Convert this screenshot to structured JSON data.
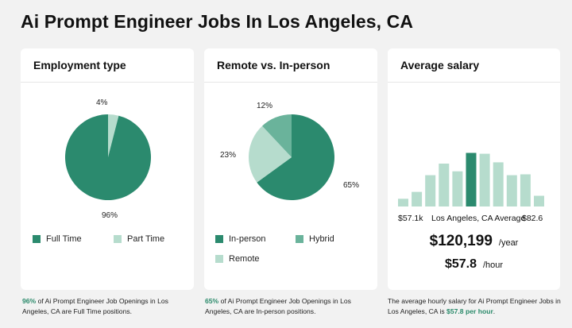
{
  "page": {
    "title": "Ai Prompt Engineer Jobs In Los Angeles, CA"
  },
  "colors": {
    "dark_green": "#2b8a6e",
    "mid_green": "#6ab39b",
    "light_green": "#b6dccd",
    "highlight_text": "#2a8a6a"
  },
  "employment": {
    "title": "Employment type",
    "slices": [
      {
        "name": "Full Time",
        "value": 96,
        "label": "96%"
      },
      {
        "name": "Part Time",
        "value": 4,
        "label": "4%"
      }
    ],
    "legend": [
      "Full Time",
      "Part Time"
    ],
    "footnote_pct": "96%",
    "footnote_text": " of Ai Prompt Engineer Job Openings in Los Angeles, CA are Full Time positions."
  },
  "remote": {
    "title": "Remote vs. In-person",
    "slices": [
      {
        "name": "In-person",
        "value": 65,
        "label": "65%"
      },
      {
        "name": "Remote",
        "value": 23,
        "label": "23%"
      },
      {
        "name": "Hybrid",
        "value": 12,
        "label": "12%"
      }
    ],
    "legend": [
      "In-person",
      "Hybrid",
      "Remote"
    ],
    "footnote_pct": "65%",
    "footnote_text": " of Ai Prompt Engineer Job Openings in Los Angeles, CA are In-person positions."
  },
  "salary": {
    "title": "Average salary",
    "chart_data": {
      "type": "bar",
      "bars": [
        0.18,
        0.34,
        0.73,
        1.0,
        0.82,
        1.25,
        1.23,
        1.03,
        0.73,
        0.75,
        0.25
      ],
      "highlight_index": 5,
      "note": "relative bar heights of salary distribution histogram"
    },
    "min_label": "$57.1k",
    "avg_label": "Los Angeles, CA Average",
    "max_label": "$82.6",
    "yearly": "$120,199",
    "yearly_unit": "/year",
    "hourly": "$57.8",
    "hourly_unit": "/hour",
    "footnote_text": "The average hourly salary for Ai Prompt Engineer Jobs in Los Angeles, CA is ",
    "footnote_hl": "$57.8 per hour",
    "footnote_end": "."
  }
}
